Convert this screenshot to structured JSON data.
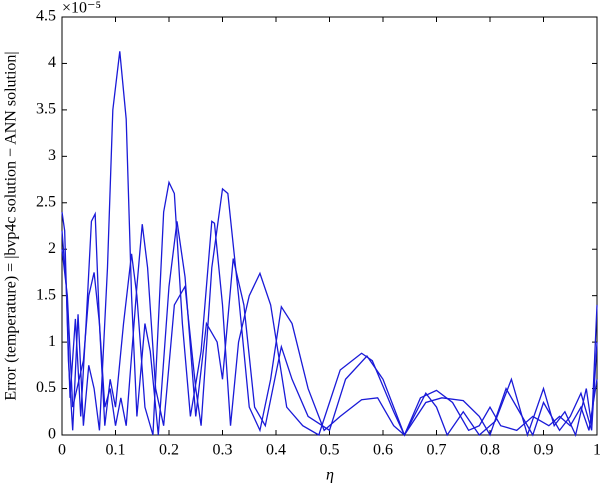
{
  "chart_data": {
    "type": "line",
    "xlabel": "η",
    "ylabel": "Error (temperature) = |bvp4c solution − ANN solution|",
    "y_scale_label": "×10⁻⁵",
    "xlim": [
      0,
      1
    ],
    "xticks": [
      0,
      0.1,
      0.2,
      0.3,
      0.4,
      0.5,
      0.6,
      0.7,
      0.8,
      0.9,
      1
    ],
    "ylim": [
      0,
      4.5
    ],
    "yticks": [
      0,
      0.5,
      1,
      1.5,
      2,
      2.5,
      3,
      3.5,
      4,
      4.5
    ],
    "grid": false,
    "series": [
      {
        "color": "#1a1ad8",
        "x": [
          0,
          0.005,
          0.012,
          0.02,
          0.03,
          0.04,
          0.05,
          0.06,
          0.07,
          0.085,
          0.095,
          0.108,
          0.12,
          0.13,
          0.14,
          0.155,
          0.165,
          0.18,
          0.2,
          0.215,
          0.23,
          0.25,
          0.27,
          0.29,
          0.3,
          0.32,
          0.34,
          0.36,
          0.38,
          0.41,
          0.43,
          0.46,
          0.5,
          0.53,
          0.57,
          0.6,
          0.64,
          0.68,
          0.7,
          0.72,
          0.75,
          0.78,
          0.81,
          0.84,
          0.87,
          0.9,
          0.92,
          0.94,
          0.96,
          0.98,
          0.99,
          1
        ],
        "values": [
          2.4,
          2.2,
          0.8,
          0.05,
          1.3,
          0.1,
          0.75,
          0.5,
          0.05,
          1.8,
          3.5,
          4.13,
          3.4,
          1.5,
          0.2,
          1.2,
          0.9,
          0.0,
          1.6,
          2.3,
          1.7,
          0.2,
          1.2,
          1.0,
          0.6,
          1.9,
          1.4,
          0.3,
          0.1,
          0.95,
          0.6,
          0.2,
          0.05,
          0.6,
          0.85,
          0.6,
          0.0,
          0.45,
          0.3,
          0.0,
          0.25,
          0.0,
          0.15,
          0.6,
          0.0,
          0.5,
          0.1,
          0.25,
          0.0,
          0.5,
          0.1,
          1.4
        ]
      },
      {
        "color": "#1a1ad8",
        "x": [
          0,
          0.008,
          0.015,
          0.025,
          0.035,
          0.045,
          0.055,
          0.062,
          0.07,
          0.08,
          0.09,
          0.1,
          0.115,
          0.13,
          0.14,
          0.155,
          0.17,
          0.19,
          0.2,
          0.21,
          0.225,
          0.24,
          0.26,
          0.28,
          0.285,
          0.3,
          0.315,
          0.33,
          0.35,
          0.37,
          0.39,
          0.42,
          0.45,
          0.48,
          0.52,
          0.56,
          0.58,
          0.62,
          0.64,
          0.67,
          0.7,
          0.73,
          0.76,
          0.78,
          0.8,
          0.82,
          0.85,
          0.88,
          0.91,
          0.93,
          0.95,
          0.97,
          0.985,
          1
        ],
        "values": [
          2.2,
          1.6,
          0.4,
          1.25,
          0.2,
          1.2,
          2.3,
          2.38,
          1.2,
          0.1,
          0.6,
          0.3,
          1.2,
          1.95,
          1.5,
          0.3,
          0.0,
          2.4,
          2.72,
          2.6,
          1.2,
          0.2,
          0.9,
          2.3,
          2.28,
          1.4,
          0.1,
          1.0,
          1.5,
          1.74,
          1.4,
          0.3,
          0.1,
          0.0,
          0.7,
          0.88,
          0.8,
          0.25,
          0.0,
          0.4,
          0.48,
          0.35,
          0.05,
          0.1,
          0.3,
          0.1,
          0.05,
          0.2,
          0.1,
          0.2,
          0.1,
          0.3,
          0.05,
          0.6
        ]
      },
      {
        "color": "#1a1ad8",
        "x": [
          0,
          0.01,
          0.02,
          0.04,
          0.05,
          0.06,
          0.07,
          0.08,
          0.09,
          0.1,
          0.11,
          0.12,
          0.14,
          0.15,
          0.16,
          0.175,
          0.19,
          0.21,
          0.23,
          0.25,
          0.26,
          0.28,
          0.3,
          0.31,
          0.33,
          0.35,
          0.37,
          0.39,
          0.41,
          0.43,
          0.46,
          0.49,
          0.52,
          0.56,
          0.59,
          0.62,
          0.64,
          0.68,
          0.71,
          0.75,
          0.78,
          0.8,
          0.83,
          0.85,
          0.88,
          0.9,
          0.93,
          0.95,
          0.97,
          0.99,
          1
        ],
        "values": [
          2.0,
          1.5,
          0.3,
          0.8,
          1.5,
          1.75,
          1.2,
          0.3,
          0.5,
          0.1,
          0.4,
          0.1,
          1.6,
          2.27,
          1.8,
          0.5,
          0.1,
          1.4,
          1.6,
          0.5,
          0.1,
          1.8,
          2.65,
          2.6,
          1.5,
          0.3,
          0.05,
          0.6,
          1.38,
          1.2,
          0.5,
          0.05,
          0.2,
          0.38,
          0.4,
          0.1,
          0.0,
          0.35,
          0.4,
          0.37,
          0.2,
          0.0,
          0.5,
          0.3,
          0.0,
          0.35,
          0.05,
          0.2,
          0.45,
          0.05,
          1.0
        ]
      }
    ]
  }
}
